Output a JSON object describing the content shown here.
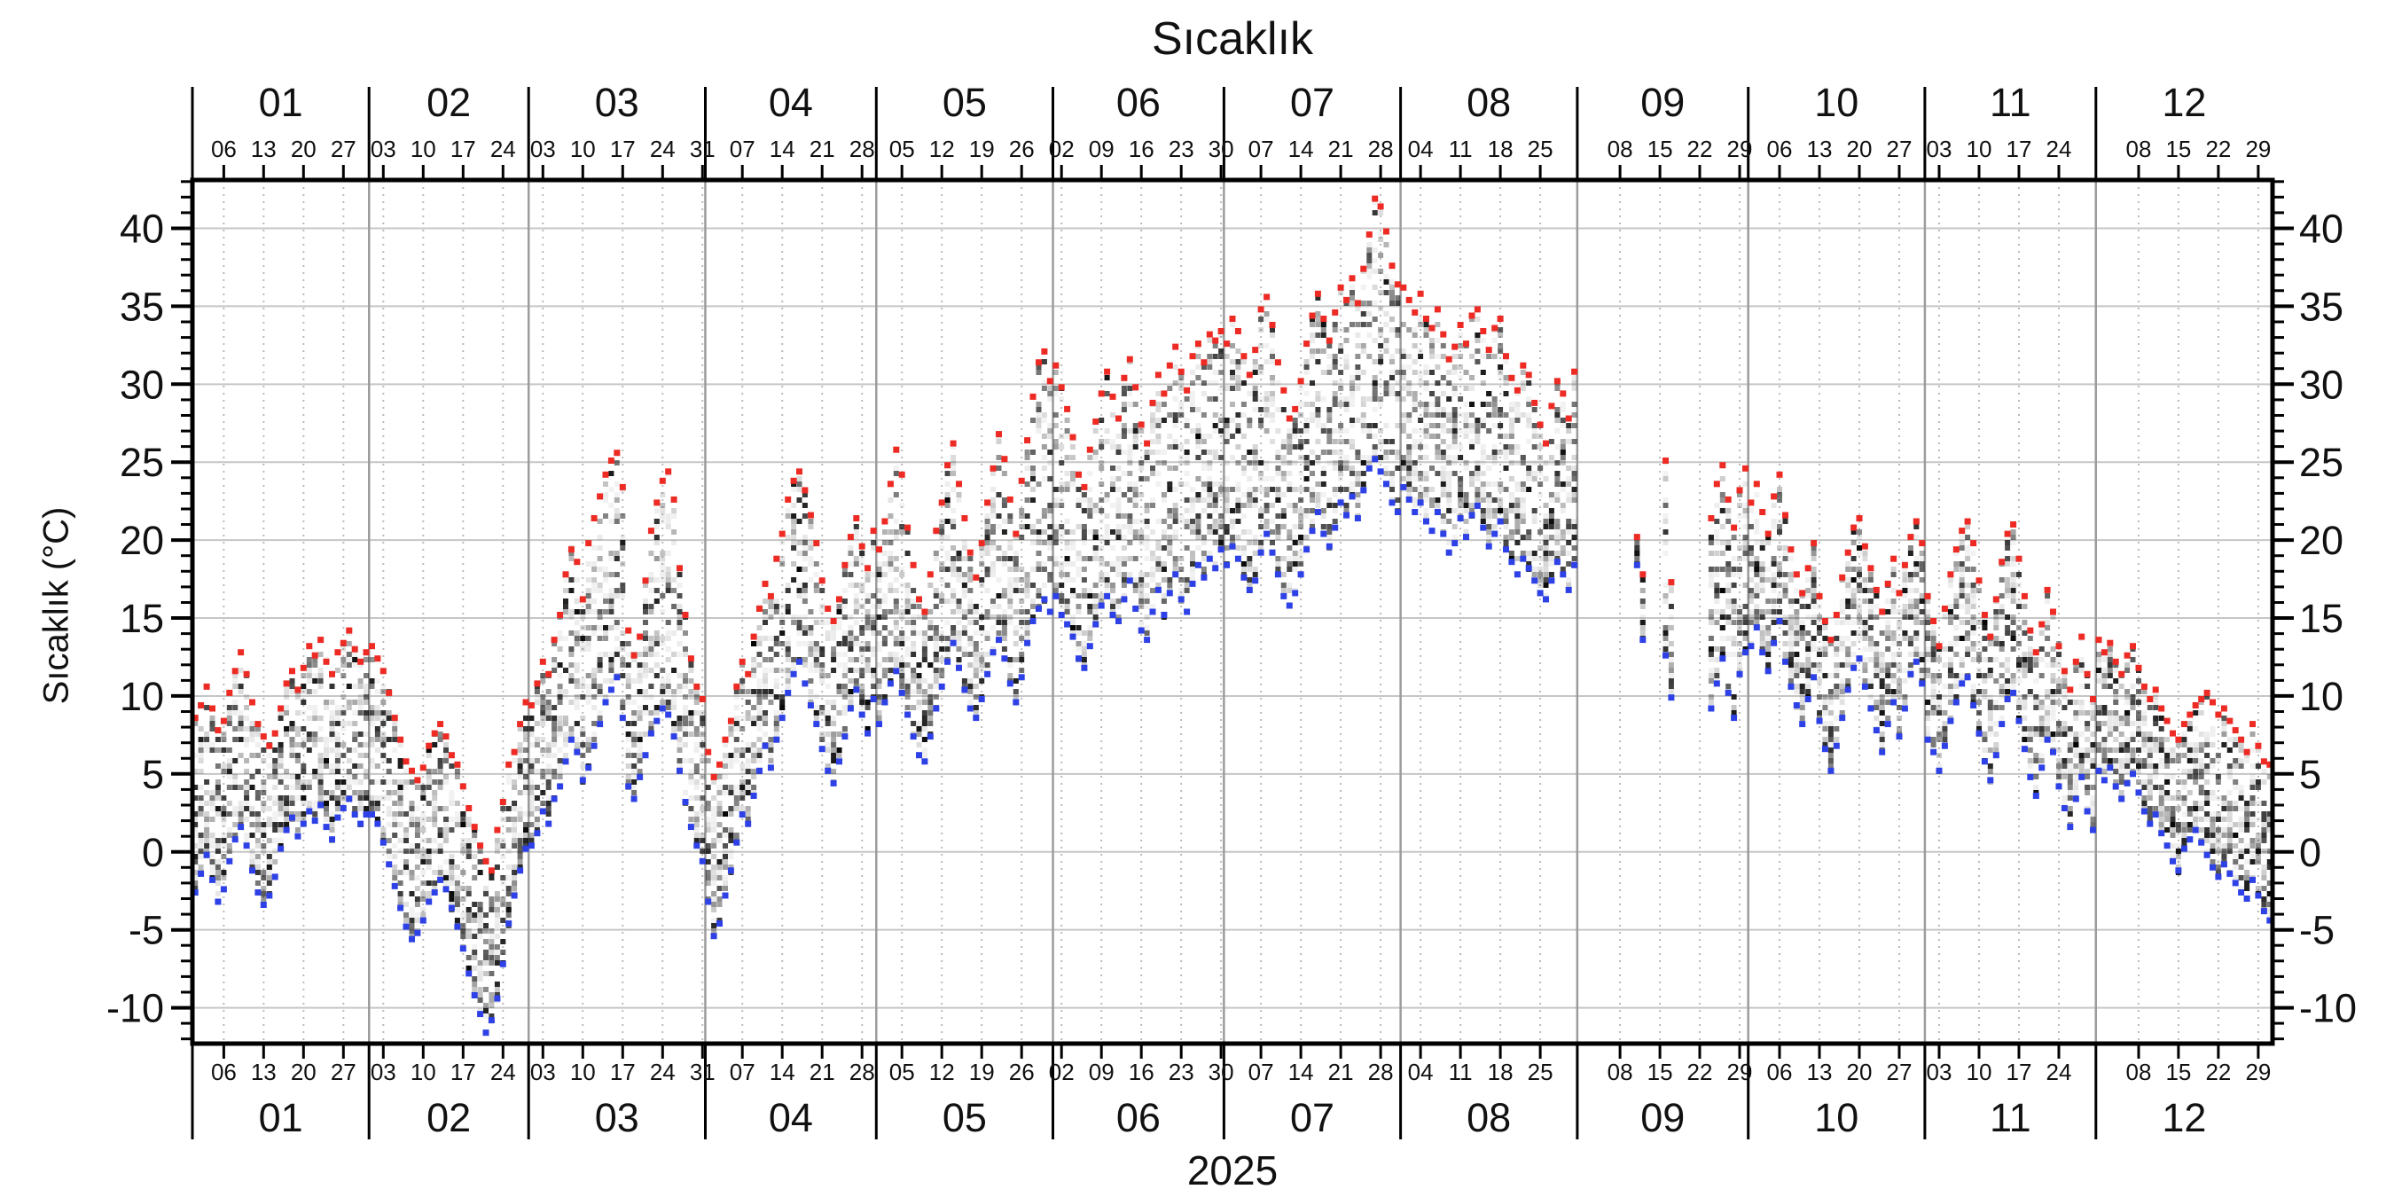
{
  "title": "Sıcaklık",
  "y_axis": {
    "label": "Sıcaklık (°C)",
    "tick_labels": [
      40,
      35,
      30,
      25,
      20,
      15,
      10,
      5,
      0,
      -5,
      -10
    ],
    "minor_step": 1
  },
  "x_axis": {
    "year": "2025"
  },
  "months": [
    {
      "label": "01",
      "days": 31,
      "week_labels": [
        "06",
        "13",
        "20",
        "27"
      ]
    },
    {
      "label": "02",
      "days": 28,
      "week_labels": [
        "03",
        "10",
        "17",
        "24"
      ]
    },
    {
      "label": "03",
      "days": 31,
      "week_labels": [
        "03",
        "10",
        "17",
        "24",
        "31"
      ]
    },
    {
      "label": "04",
      "days": 30,
      "week_labels": [
        "07",
        "14",
        "21",
        "28"
      ]
    },
    {
      "label": "05",
      "days": 31,
      "week_labels": [
        "05",
        "12",
        "19",
        "26"
      ]
    },
    {
      "label": "06",
      "days": 30,
      "week_labels": [
        "02",
        "09",
        "16",
        "23",
        "30"
      ]
    },
    {
      "label": "07",
      "days": 31,
      "week_labels": [
        "07",
        "14",
        "21",
        "28"
      ]
    },
    {
      "label": "08",
      "days": 31,
      "week_labels": [
        "04",
        "11",
        "18",
        "25"
      ]
    },
    {
      "label": "09",
      "days": 30,
      "week_labels": [
        "08",
        "15",
        "22",
        "29"
      ]
    },
    {
      "label": "10",
      "days": 31,
      "week_labels": [
        "06",
        "13",
        "20",
        "27"
      ]
    },
    {
      "label": "11",
      "days": 30,
      "week_labels": [
        "03",
        "10",
        "17",
        "24"
      ]
    },
    {
      "label": "12",
      "days": 31,
      "week_labels": [
        "08",
        "15",
        "22",
        "29"
      ]
    }
  ],
  "chart_data": {
    "type": "scatter",
    "title": "Sıcaklık",
    "ylabel": "Sıcaklık (°C)",
    "xlabel": "2025",
    "ylim": [
      -12.3,
      43.1
    ],
    "x_unit": "day of year 2025, one column per day",
    "grid": true,
    "legend_position": "none",
    "marker_meaning": {
      "red": "daily maximum",
      "blue": "daily minimum",
      "gray": "hourly observations between min and max"
    },
    "marker_colors": {
      "daily_max": "#ed2b24",
      "daily_min": "#2d41e6"
    },
    "daily": {
      "01": {
        "max": [
          8.6,
          9.4,
          10.6,
          9.2,
          7.8,
          8.4,
          10.2,
          11.6,
          12.8,
          11.4,
          9.6,
          8.2,
          7.4,
          6.8,
          7.6,
          9.2,
          10.8,
          11.6,
          10.4,
          11.8,
          13.2,
          12.6,
          13.6,
          12.2,
          11.4,
          12.8,
          13.4,
          14.2,
          13.0,
          12.2,
          12.8
        ],
        "min": [
          -2.6,
          -1.4,
          -0.2,
          -1.8,
          -3.2,
          -2.4,
          -0.6,
          0.8,
          1.6,
          0.4,
          -1.2,
          -2.6,
          -3.4,
          -2.8,
          -1.6,
          0.2,
          1.4,
          2.2,
          1.0,
          1.8,
          2.6,
          2.0,
          3.0,
          1.6,
          0.8,
          2.2,
          2.8,
          3.4,
          2.4,
          1.8,
          2.4
        ]
      },
      "02": {
        "max": [
          13.2,
          12.4,
          11.6,
          10.2,
          8.6,
          7.2,
          5.8,
          5.2,
          4.6,
          5.4,
          6.8,
          7.6,
          8.2,
          7.4,
          6.2,
          5.6,
          4.2,
          2.8,
          1.6,
          0.4,
          -0.6,
          -1.2,
          1.4,
          3.2,
          5.6,
          6.4,
          8.2,
          9.6
        ],
        "min": [
          2.4,
          1.8,
          0.6,
          -0.8,
          -2.2,
          -3.6,
          -4.8,
          -5.6,
          -5.2,
          -4.4,
          -3.2,
          -2.6,
          -1.8,
          -2.4,
          -3.6,
          -4.8,
          -6.2,
          -7.8,
          -9.2,
          -10.4,
          -11.6,
          -10.8,
          -9.4,
          -7.2,
          -4.6,
          -2.8,
          -1.2,
          0.2
        ]
      },
      "03": {
        "max": [
          9.4,
          10.8,
          12.2,
          11.4,
          13.6,
          15.2,
          17.8,
          19.4,
          18.6,
          16.2,
          19.8,
          21.4,
          22.8,
          24.2,
          25.1,
          25.6,
          23.4,
          14.2,
          12.6,
          13.8,
          17.4,
          20.6,
          22.4,
          23.8,
          24.4,
          22.6,
          18.2,
          15.2,
          12.4,
          10.6,
          9.8
        ],
        "min": [
          0.4,
          1.2,
          2.6,
          1.8,
          3.4,
          4.2,
          5.8,
          7.2,
          6.4,
          4.6,
          5.4,
          6.8,
          8.2,
          9.6,
          10.4,
          11.2,
          8.6,
          4.2,
          3.4,
          4.8,
          6.2,
          7.6,
          8.4,
          9.2,
          8.8,
          7.4,
          5.2,
          3.2,
          1.6,
          0.4,
          -0.6
        ]
      },
      "04": {
        "max": [
          6.4,
          4.8,
          5.6,
          7.2,
          8.4,
          10.6,
          12.2,
          11.4,
          13.8,
          15.6,
          17.2,
          16.4,
          18.8,
          20.4,
          22.6,
          23.8,
          24.4,
          23.2,
          21.6,
          19.8,
          17.4,
          15.6,
          14.8,
          16.2,
          18.4,
          20.2,
          21.4,
          19.6,
          18.2,
          20.6
        ],
        "min": [
          -3.2,
          -5.4,
          -4.6,
          -2.8,
          -1.2,
          0.6,
          2.4,
          1.8,
          3.6,
          5.2,
          6.8,
          5.4,
          7.2,
          8.6,
          10.2,
          11.4,
          12.2,
          10.8,
          9.4,
          8.2,
          6.6,
          5.2,
          4.4,
          5.8,
          7.4,
          9.2,
          10.4,
          8.8,
          7.6,
          9.8
        ]
      },
      "05": {
        "max": [
          19.4,
          21.2,
          23.6,
          25.8,
          24.2,
          20.8,
          18.4,
          16.2,
          15.4,
          17.8,
          20.6,
          22.4,
          24.8,
          26.2,
          23.6,
          21.4,
          19.2,
          17.6,
          19.8,
          22.4,
          24.6,
          26.8,
          25.2,
          22.6,
          20.4,
          23.8,
          26.4,
          29.2,
          31.4,
          32.1,
          30.2
        ],
        "min": [
          8.2,
          9.6,
          10.8,
          11.6,
          10.2,
          8.8,
          7.4,
          6.2,
          5.8,
          7.4,
          9.2,
          10.6,
          12.2,
          13.4,
          11.8,
          10.4,
          9.2,
          8.6,
          9.8,
          11.4,
          12.8,
          13.6,
          12.4,
          10.8,
          9.6,
          11.2,
          13.4,
          14.8,
          15.6,
          16.2,
          15.4
        ]
      },
      "06": {
        "max": [
          31.2,
          29.8,
          28.4,
          26.6,
          24.2,
          23.4,
          25.8,
          27.6,
          29.4,
          30.8,
          29.2,
          27.8,
          30.4,
          31.6,
          29.8,
          27.4,
          26.2,
          28.8,
          30.6,
          29.4,
          31.2,
          32.4,
          30.8,
          29.6,
          31.8,
          32.6,
          31.4,
          33.2,
          32.8,
          33.4
        ],
        "min": [
          16.4,
          15.2,
          14.6,
          13.8,
          12.4,
          11.8,
          13.2,
          14.6,
          15.8,
          16.4,
          15.2,
          14.8,
          16.2,
          17.4,
          15.6,
          14.2,
          13.6,
          15.4,
          16.8,
          15.2,
          16.6,
          17.8,
          16.2,
          15.4,
          17.2,
          18.4,
          17.6,
          18.8,
          18.2,
          19.4
        ]
      },
      "07": {
        "max": [
          32.6,
          34.2,
          33.4,
          31.8,
          30.6,
          32.2,
          34.8,
          35.6,
          33.8,
          31.4,
          29.6,
          27.8,
          28.4,
          30.2,
          32.6,
          34.4,
          35.8,
          34.2,
          32.8,
          34.6,
          36.2,
          35.4,
          36.8,
          35.2,
          37.4,
          39.6,
          41.9,
          41.4,
          39.8,
          37.6,
          36.4
        ],
        "min": [
          18.4,
          19.6,
          18.8,
          17.6,
          16.8,
          17.4,
          19.2,
          20.4,
          19.2,
          17.8,
          16.4,
          15.8,
          16.6,
          17.8,
          19.4,
          20.6,
          21.8,
          20.4,
          19.6,
          20.8,
          22.4,
          21.6,
          22.8,
          21.4,
          23.2,
          24.6,
          25.2,
          24.4,
          23.6,
          22.4,
          21.8
        ]
      },
      "08": {
        "max": [
          36.2,
          35.4,
          34.6,
          35.8,
          34.2,
          33.6,
          34.8,
          33.2,
          31.6,
          32.4,
          33.8,
          32.6,
          34.4,
          34.8,
          33.4,
          32.2,
          33.6,
          34.2,
          31.8,
          30.4,
          29.6,
          31.2,
          30.6,
          28.8,
          27.4,
          26.2,
          28.6,
          30.2,
          29.4,
          27.8,
          30.8
        ],
        "min": [
          23.4,
          22.6,
          21.8,
          22.4,
          21.2,
          20.6,
          21.8,
          20.4,
          19.2,
          19.8,
          21.4,
          20.2,
          21.6,
          22.2,
          20.8,
          19.6,
          20.4,
          21.2,
          19.4,
          18.6,
          17.8,
          18.8,
          18.2,
          17.4,
          16.6,
          16.2,
          17.4,
          18.6,
          17.8,
          16.8,
          18.4
        ]
      },
      "09": {
        "max": [
          null,
          null,
          null,
          null,
          null,
          null,
          null,
          null,
          null,
          null,
          20.2,
          17.8,
          null,
          null,
          null,
          25.1,
          17.3,
          null,
          null,
          null,
          null,
          null,
          null,
          21.4,
          23.6,
          24.8,
          22.6,
          20.8,
          23.2,
          24.6
        ],
        "min": [
          null,
          null,
          null,
          null,
          null,
          null,
          null,
          null,
          null,
          null,
          18.4,
          13.6,
          null,
          null,
          null,
          12.6,
          9.9,
          null,
          null,
          null,
          null,
          null,
          null,
          9.2,
          10.8,
          12.4,
          10.2,
          8.6,
          11.4,
          12.8
        ]
      },
      "10": {
        "max": [
          22.4,
          23.6,
          21.8,
          20.4,
          22.8,
          24.2,
          21.6,
          19.4,
          17.8,
          16.6,
          18.2,
          19.8,
          16.4,
          14.8,
          13.6,
          15.2,
          17.6,
          19.2,
          20.8,
          21.4,
          19.6,
          18.2,
          16.8,
          15.4,
          17.2,
          18.8,
          16.6,
          18.4,
          20.2,
          21.2,
          19.8
        ],
        "min": [
          13.2,
          14.4,
          12.8,
          11.6,
          13.4,
          14.8,
          12.2,
          10.6,
          9.4,
          8.2,
          9.8,
          11.2,
          8.4,
          6.6,
          5.2,
          6.8,
          8.6,
          10.4,
          11.8,
          12.4,
          10.6,
          9.2,
          7.8,
          6.4,
          8.2,
          9.6,
          7.4,
          9.2,
          11.4,
          12.2,
          10.8
        ]
      },
      "11": {
        "max": [
          16.4,
          14.8,
          13.2,
          15.6,
          17.8,
          19.4,
          20.6,
          21.2,
          19.8,
          17.4,
          15.2,
          13.8,
          16.2,
          18.6,
          20.4,
          21.0,
          18.8,
          16.4,
          14.2,
          12.8,
          14.6,
          16.8,
          15.4,
          13.2,
          11.6,
          10.4,
          12.2,
          13.8,
          11.4,
          9.8
        ],
        "min": [
          7.2,
          6.4,
          5.2,
          6.8,
          8.4,
          9.6,
          10.8,
          11.2,
          9.4,
          7.6,
          5.8,
          4.6,
          6.2,
          8.2,
          9.8,
          10.2,
          8.4,
          6.6,
          4.8,
          3.6,
          5.4,
          7.2,
          6.4,
          4.2,
          2.8,
          1.6,
          3.4,
          4.8,
          2.6,
          1.4
        ]
      },
      "12": {
        "max": [
          13.6,
          12.8,
          13.4,
          12.2,
          11.4,
          12.6,
          13.2,
          11.8,
          10.6,
          9.8,
          10.4,
          9.2,
          8.4,
          7.6,
          7.2,
          8.2,
          8.8,
          9.4,
          9.8,
          10.2,
          9.6,
          8.8,
          9.2,
          8.4,
          7.8,
          7.2,
          6.4,
          8.2,
          6.8,
          5.8,
          5.6
        ],
        "min": [
          5.2,
          4.6,
          5.4,
          4.2,
          3.4,
          4.4,
          5.0,
          3.8,
          2.6,
          1.8,
          2.4,
          1.2,
          0.4,
          -0.6,
          -1.2,
          0.2,
          0.8,
          1.4,
          0.6,
          -0.2,
          -1.0,
          -1.6,
          -0.8,
          -1.4,
          -2.0,
          -2.6,
          -3.0,
          -1.8,
          -2.8,
          -3.8,
          -4.4
        ]
      }
    }
  }
}
